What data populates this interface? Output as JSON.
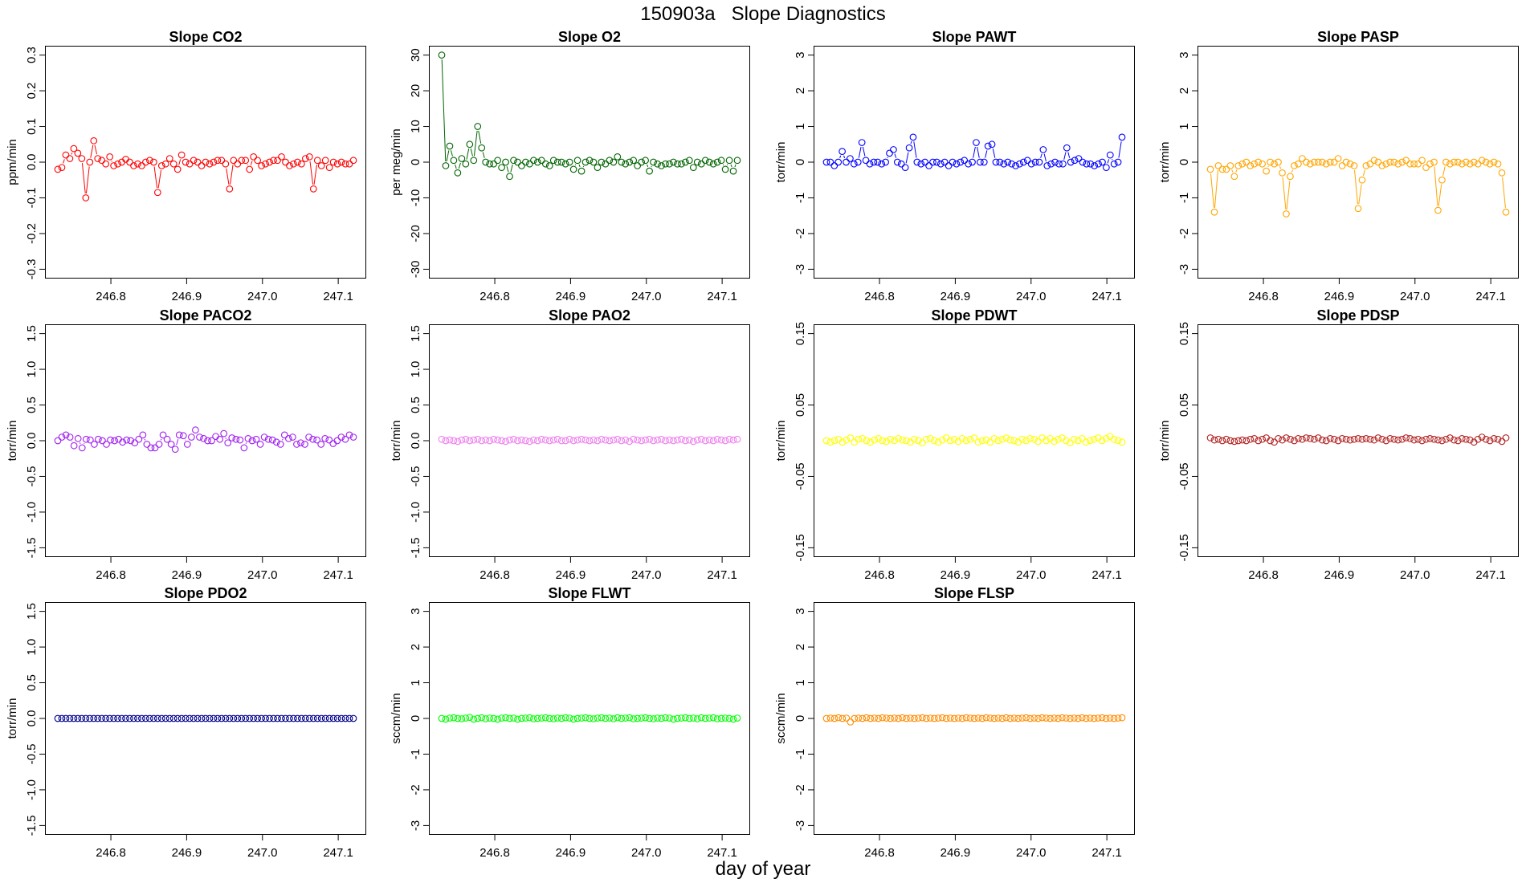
{
  "figure": {
    "title": "150903a   Slope Diagnostics",
    "xlabel": "day of year"
  },
  "chart_data": [
    {
      "id": "co2",
      "type": "line",
      "title": "Slope CO2",
      "ylabel": "ppm/min",
      "color": "#ff0000",
      "ylim": [
        -0.3,
        0.3
      ],
      "yticks": [
        "-0.3",
        "-0.2",
        "-0.1",
        "0.0",
        "0.1",
        "0.2",
        "0.3"
      ],
      "xlim": [
        246.73,
        247.12
      ],
      "xticks": [
        "246.8",
        "246.9",
        "247.0",
        "247.1"
      ],
      "values": [
        -0.02,
        -0.015,
        0.02,
        0.01,
        0.038,
        0.025,
        0.01,
        -0.1,
        0.0,
        0.06,
        0.01,
        0.005,
        -0.005,
        0.015,
        -0.01,
        -0.005,
        0.0,
        0.008,
        0.0,
        -0.01,
        -0.005,
        -0.01,
        0.0,
        0.005,
        0.0,
        -0.085,
        -0.01,
        -0.005,
        0.01,
        -0.005,
        -0.02,
        0.02,
        0.0,
        -0.005,
        0.005,
        0.0,
        -0.01,
        0.0,
        -0.005,
        0.0,
        0.005,
        0.005,
        -0.005,
        -0.075,
        0.005,
        -0.005,
        0.005,
        0.005,
        -0.02,
        0.015,
        0.005,
        -0.01,
        -0.005,
        0.0,
        0.005,
        0.005,
        0.015,
        0.0,
        -0.01,
        -0.005,
        0.0,
        -0.005,
        0.01,
        0.015,
        -0.075,
        0.005,
        -0.01,
        0.005,
        -0.015,
        0.0,
        -0.005,
        0.0,
        -0.005,
        -0.005,
        0.005
      ]
    },
    {
      "id": "o2",
      "type": "line",
      "title": "Slope O2",
      "ylabel": "per meg/min",
      "color": "#006400",
      "ylim": [
        -30,
        30
      ],
      "yticks": [
        "-30",
        "-20",
        "-10",
        "0",
        "10",
        "20",
        "30"
      ],
      "xlim": [
        246.73,
        247.12
      ],
      "xticks": [
        "246.8",
        "246.9",
        "247.0",
        "247.1"
      ],
      "values": [
        30,
        -1,
        4.5,
        0.5,
        -3,
        1,
        -0.5,
        5,
        0.5,
        10,
        4,
        0,
        -0.5,
        -0.5,
        0.5,
        -1.5,
        0,
        -4,
        0.5,
        0,
        -1,
        0,
        -0.5,
        0.5,
        0,
        0.5,
        -0.5,
        -1,
        0.5,
        0,
        0,
        -0.5,
        0,
        -2,
        0.5,
        -2.5,
        0,
        0.5,
        0,
        -1.5,
        0,
        -0.5,
        0.5,
        0,
        1.5,
        0,
        -0.5,
        0,
        0.5,
        -1,
        0,
        0.5,
        -2.5,
        0,
        -0.5,
        -1,
        -0.5,
        -0.5,
        0,
        -0.5,
        -0.5,
        0,
        0.5,
        -1.5,
        0,
        -0.5,
        0.5,
        0,
        -0.5,
        0,
        0.5,
        -2,
        0.5,
        -2.5,
        0.5
      ]
    },
    {
      "id": "pawt",
      "type": "line",
      "title": "Slope PAWT",
      "ylabel": "torr/min",
      "color": "#0000ff",
      "ylim": [
        -3,
        3
      ],
      "yticks": [
        "-3",
        "-2",
        "-1",
        "0",
        "1",
        "2",
        "3"
      ],
      "xlim": [
        246.73,
        247.12
      ],
      "xticks": [
        "246.8",
        "246.9",
        "247.0",
        "247.1"
      ],
      "values": [
        0,
        0,
        -0.1,
        0,
        0.3,
        0,
        0.1,
        -0.05,
        0,
        0.55,
        0.05,
        -0.05,
        0,
        0,
        -0.05,
        0,
        0.25,
        0.35,
        0,
        -0.05,
        -0.15,
        0.4,
        0.7,
        0,
        -0.05,
        0,
        -0.1,
        0,
        0,
        -0.05,
        0,
        -0.1,
        0,
        -0.05,
        0,
        0.05,
        -0.05,
        0,
        0.55,
        0,
        0,
        0.45,
        0.5,
        0,
        0,
        -0.05,
        0,
        -0.05,
        -0.1,
        -0.05,
        0,
        0.05,
        -0.05,
        0,
        0,
        0.35,
        -0.1,
        -0.05,
        0,
        -0.05,
        -0.05,
        0.4,
        0,
        0.05,
        0.1,
        0,
        -0.05,
        -0.05,
        -0.1,
        -0.05,
        0,
        -0.15,
        0.2,
        -0.05,
        0,
        0.7
      ]
    },
    {
      "id": "pasp",
      "type": "line",
      "title": "Slope PASP",
      "ylabel": "torr/min",
      "color": "#ffa500",
      "ylim": [
        -3,
        3
      ],
      "yticks": [
        "-3",
        "-2",
        "-1",
        "0",
        "1",
        "2",
        "3"
      ],
      "xlim": [
        246.73,
        247.12
      ],
      "xticks": [
        "246.8",
        "246.9",
        "247.0",
        "247.1"
      ],
      "values": [
        -0.2,
        -1.4,
        -0.1,
        -0.2,
        -0.2,
        -0.1,
        -0.4,
        -0.1,
        -0.05,
        0,
        -0.1,
        -0.05,
        0,
        -0.05,
        -0.25,
        0,
        -0.05,
        0,
        -0.3,
        -1.45,
        -0.4,
        -0.1,
        -0.05,
        0.1,
        0,
        -0.05,
        0,
        0,
        0,
        -0.05,
        0,
        0,
        0.1,
        -0.1,
        0,
        -0.05,
        -0.1,
        -1.3,
        -0.5,
        -0.1,
        -0.05,
        0.05,
        0,
        -0.1,
        -0.05,
        0,
        0,
        -0.05,
        0,
        0.05,
        -0.05,
        -0.05,
        -0.05,
        0.05,
        -0.15,
        -0.05,
        0,
        -1.35,
        -0.5,
        0,
        -0.05,
        0,
        0,
        -0.05,
        0,
        -0.05,
        0,
        -0.05,
        0.05,
        0,
        -0.05,
        0,
        -0.05,
        -0.3,
        -1.4
      ]
    },
    {
      "id": "paco2",
      "type": "line",
      "title": "Slope PACO2",
      "ylabel": "torr/min",
      "color": "#a020f0",
      "ylim": [
        -1.5,
        1.5
      ],
      "yticks": [
        "-1.5",
        "-1.0",
        "-0.5",
        "0.0",
        "0.5",
        "1.0",
        "1.5"
      ],
      "xlim": [
        246.73,
        247.12
      ],
      "xticks": [
        "246.8",
        "246.9",
        "247.0",
        "247.1"
      ],
      "values": [
        0,
        0.05,
        0.08,
        0.05,
        -0.07,
        0.03,
        -0.1,
        0.02,
        0.01,
        -0.05,
        0.02,
        0,
        -0.05,
        0.01,
        0,
        0.02,
        -0.02,
        0.01,
        0,
        -0.03,
        0.02,
        0.08,
        -0.05,
        -0.1,
        -0.1,
        -0.05,
        0.08,
        0.02,
        -0.05,
        -0.12,
        0.08,
        0.07,
        -0.05,
        0.05,
        0.15,
        0.05,
        0.03,
        0,
        0,
        0.06,
        0.02,
        0.1,
        -0.03,
        0.04,
        0.02,
        0.01,
        -0.1,
        0.03,
        0,
        0.02,
        -0.05,
        0.05,
        0.02,
        0.01,
        -0.02,
        -0.05,
        0.08,
        0.03,
        0.05,
        -0.05,
        -0.03,
        -0.05,
        0.05,
        0.02,
        0.01,
        -0.05,
        0.03,
        0.01,
        -0.04,
        0,
        0.05,
        0.02,
        0.08,
        0.05
      ]
    },
    {
      "id": "pao2",
      "type": "line",
      "title": "Slope PAO2",
      "ylabel": "torr/min",
      "color": "#ee82ee",
      "ylim": [
        -1.5,
        1.5
      ],
      "yticks": [
        "-1.5",
        "-1.0",
        "-0.5",
        "0.0",
        "0.5",
        "1.0",
        "1.5"
      ],
      "xlim": [
        246.73,
        247.12
      ],
      "xticks": [
        "246.8",
        "246.9",
        "247.0",
        "247.1"
      ],
      "values": [
        0.02,
        0,
        0.01,
        0,
        -0.01,
        0.01,
        0.02,
        0,
        0.01,
        0.02,
        0,
        0.01,
        0,
        0.02,
        0.01,
        0,
        -0.01,
        0.01,
        0.02,
        0,
        0.01,
        0,
        -0.01,
        0.01,
        0,
        0.02,
        0.01,
        0,
        0.01,
        0.02,
        0,
        0,
        0.02,
        0,
        0.01,
        0.02,
        0.01,
        0,
        0.01,
        0,
        0.02,
        0.01,
        0,
        0.01,
        0.02,
        0,
        0.01,
        -0.01,
        0.02,
        0.01,
        0,
        0.01,
        0.02,
        0,
        0.01,
        0.02,
        0,
        0.01,
        0,
        0.01,
        0.02,
        0,
        0.01,
        -0.01,
        0.01,
        0.02,
        0,
        0.01,
        0,
        0.02,
        0.01,
        0,
        0.02,
        0.01,
        0.02
      ]
    },
    {
      "id": "pdwt",
      "type": "line",
      "title": "Slope PDWT",
      "ylabel": "torr/min",
      "color": "#ffff00",
      "ylim": [
        -0.15,
        0.15
      ],
      "yticks": [
        "-0.15",
        "-0.05",
        "0.05",
        "0.15"
      ],
      "xlim": [
        246.73,
        247.12
      ],
      "xticks": [
        "246.8",
        "246.9",
        "247.0",
        "247.1"
      ],
      "values": [
        0,
        -0.002,
        0,
        0.002,
        -0.002,
        0.001,
        0.004,
        -0.002,
        0.002,
        0.003,
        0,
        -0.002,
        0.001,
        0.003,
        0,
        -0.001,
        0.002,
        0,
        0.003,
        0.001,
        0,
        -0.002,
        0.002,
        0,
        -0.003,
        0.002,
        0.003,
        0,
        -0.002,
        0.001,
        0.004,
        0,
        0.002,
        -0.001,
        0.003,
        0,
        0.002,
        0.004,
        -0.002,
        0,
        0.001,
        -0.002,
        0.003,
        0,
        0.002,
        0.004,
        0.001,
        0,
        -0.002,
        0.002,
        0,
        0.003,
        0.002,
        -0.001,
        0.004,
        0,
        0.003,
        -0.001,
        0.002,
        0.004,
        0,
        -0.003,
        0.002,
        0,
        0.003,
        -0.002,
        0,
        0.002,
        0.004,
        0,
        0.003,
        0.006,
        0.002,
        0,
        -0.002
      ]
    },
    {
      "id": "pdsp",
      "type": "line",
      "title": "Slope PDSP",
      "ylabel": "torr/min",
      "color": "#b22222",
      "ylim": [
        -0.15,
        0.15
      ],
      "yticks": [
        "-0.15",
        "-0.05",
        "0.05",
        "0.15"
      ],
      "xlim": [
        246.73,
        247.12
      ],
      "xticks": [
        "246.8",
        "246.9",
        "247.0",
        "247.1"
      ],
      "values": [
        0.004,
        0.001,
        0.002,
        0,
        0.002,
        0,
        -0.001,
        0,
        0.001,
        0,
        0.002,
        0.003,
        0,
        0.002,
        0.004,
        0,
        -0.002,
        0.003,
        0.001,
        0.004,
        0.002,
        0,
        0.003,
        0.002,
        0.004,
        0.003,
        0.002,
        0.004,
        0.001,
        0,
        0.003,
        0.002,
        0,
        0.003,
        0.002,
        0.001,
        0.002,
        0.003,
        0.002,
        0.003,
        0.002,
        0.001,
        0.004,
        0.002,
        0,
        0.003,
        0.002,
        0.001,
        0.002,
        0.004,
        0.003,
        0.001,
        0.002,
        0,
        0.002,
        0.003,
        0.002,
        0.001,
        0,
        0.002,
        0.004,
        0.001,
        0,
        0.003,
        0.002,
        0.001,
        -0.002,
        0.002,
        0.005,
        0.002,
        0,
        0.003,
        0.002,
        -0.001,
        0.004
      ]
    },
    {
      "id": "pdo2",
      "type": "line",
      "title": "Slope PDO2",
      "ylabel": "torr/min",
      "color": "#00008b",
      "ylim": [
        -1.5,
        1.5
      ],
      "yticks": [
        "-1.5",
        "-1.0",
        "-0.5",
        "0.0",
        "0.5",
        "1.0",
        "1.5"
      ],
      "xlim": [
        246.73,
        247.12
      ],
      "xticks": [
        "246.8",
        "246.9",
        "247.0",
        "247.1"
      ],
      "values": [
        0,
        0,
        0,
        0,
        0,
        0,
        0,
        0,
        0,
        0,
        0,
        0,
        0,
        0,
        0,
        0,
        0,
        0,
        0,
        0,
        0,
        0,
        0,
        0,
        0,
        0,
        0,
        0,
        0,
        0,
        0,
        0,
        0,
        0,
        0,
        0,
        0,
        0,
        0,
        0,
        0,
        0,
        0,
        0,
        0,
        0,
        0,
        0,
        0,
        0,
        0,
        0,
        0,
        0,
        0,
        0,
        0,
        0,
        0,
        0,
        0,
        0,
        0,
        0,
        0,
        0,
        0,
        0,
        0,
        0,
        0,
        0,
        0,
        0,
        0
      ]
    },
    {
      "id": "flwt",
      "type": "line",
      "title": "Slope FLWT",
      "ylabel": "sccm/min",
      "color": "#00ff00",
      "ylim": [
        -3,
        3
      ],
      "yticks": [
        "-3",
        "-2",
        "-1",
        "0",
        "1",
        "2",
        "3"
      ],
      "xlim": [
        246.73,
        247.12
      ],
      "xticks": [
        "246.8",
        "246.9",
        "247.0",
        "247.1"
      ],
      "values": [
        0,
        -0.02,
        0.01,
        0.02,
        0,
        -0.01,
        0.01,
        0.03,
        -0.02,
        0,
        0.02,
        -0.01,
        0.01,
        0,
        -0.02,
        0.01,
        0.02,
        0,
        0.01,
        -0.02,
        0,
        0.01,
        0.02,
        -0.01,
        0,
        0.01,
        0.02,
        0,
        -0.01,
        0.01,
        0,
        0.02,
        0.01,
        -0.02,
        0,
        0.01,
        0.02,
        0,
        -0.01,
        0.01,
        0.02,
        0,
        0.01,
        -0.01,
        0.02,
        0,
        0.01,
        0.02,
        -0.01,
        0,
        0.01,
        0.02,
        0,
        -0.01,
        0.01,
        0,
        0.02,
        0.01,
        -0.02,
        0,
        0.01,
        0.02,
        0,
        0.01,
        -0.01,
        0.02,
        0,
        0.01,
        0.02,
        -0.01,
        0,
        0.01,
        0,
        -0.02,
        0.01
      ]
    },
    {
      "id": "flsp",
      "type": "line",
      "title": "Slope FLSP",
      "ylabel": "sccm/min",
      "color": "#ff8c00",
      "ylim": [
        -3,
        3
      ],
      "yticks": [
        "-3",
        "-2",
        "-1",
        "0",
        "1",
        "2",
        "3"
      ],
      "xlim": [
        246.73,
        247.12
      ],
      "xticks": [
        "246.8",
        "246.9",
        "247.0",
        "247.1"
      ],
      "values": [
        0,
        0.01,
        0,
        0.02,
        0,
        0.01,
        -0.1,
        0,
        0.01,
        0,
        0.02,
        0,
        0.01,
        0,
        0.02,
        0.01,
        0,
        0.01,
        0,
        0.02,
        0,
        0.01,
        0,
        0.01,
        0.02,
        0,
        0.01,
        0,
        0.01,
        0.02,
        0,
        0.01,
        0,
        0.01,
        0,
        0.02,
        0.01,
        0,
        0.01,
        0,
        0.02,
        0.01,
        0,
        0.01,
        0,
        0.02,
        0,
        0.01,
        0,
        0.01,
        0.02,
        0,
        0.01,
        0,
        0.02,
        0.01,
        0,
        0.01,
        0,
        0.02,
        0.01,
        0,
        0.01,
        0,
        0.02,
        0,
        0.01,
        0,
        0.01,
        0.02,
        0,
        0.01,
        0,
        0.01,
        0.02
      ]
    }
  ]
}
